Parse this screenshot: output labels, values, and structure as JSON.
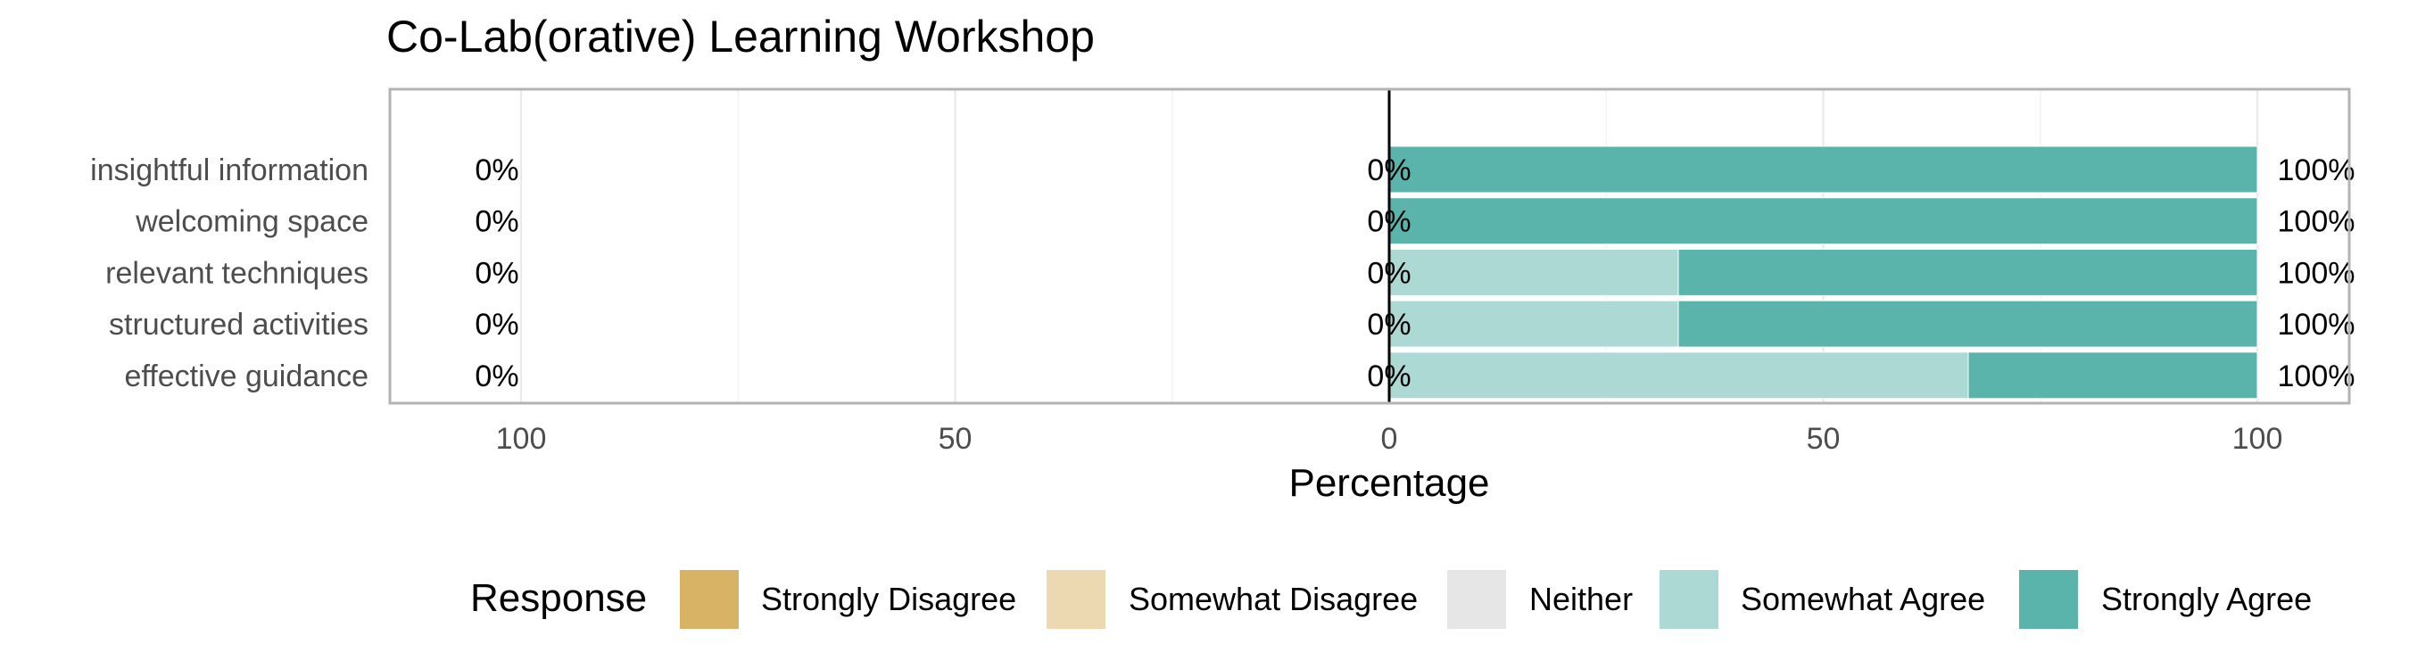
{
  "chart_data": {
    "type": "bar",
    "orientation": "horizontal",
    "stacked": "diverging",
    "title": "Co-Lab(orative) Learning Workshop",
    "xlabel": "Percentage",
    "ylabel": "",
    "xlim": [
      -115,
      110
    ],
    "xticks": [
      -100,
      -50,
      0,
      50,
      100
    ],
    "xtick_labels": [
      "100",
      "50",
      "0",
      "50",
      "100"
    ],
    "grid": true,
    "legend": {
      "title": "Response",
      "position": "bottom"
    },
    "categories": [
      "insightful information",
      "welcoming space",
      "relevant techniques",
      "structured activities",
      "effective guidance"
    ],
    "series": [
      {
        "name": "Strongly Disagree",
        "color": "#D8B365",
        "values": [
          0,
          0,
          0,
          0,
          0
        ]
      },
      {
        "name": "Somewhat Disagree",
        "color": "#ECD9B2",
        "values": [
          0,
          0,
          0,
          0,
          0
        ]
      },
      {
        "name": "Neither",
        "color": "#E6E6E6",
        "values": [
          0,
          0,
          0,
          0,
          0
        ]
      },
      {
        "name": "Somewhat Agree",
        "color": "#ADD9D5",
        "values": [
          0,
          0,
          33.3,
          33.3,
          66.7
        ]
      },
      {
        "name": "Strongly Agree",
        "color": "#5AB4AC",
        "values": [
          100,
          100,
          66.7,
          66.7,
          33.3
        ]
      }
    ],
    "annotations": {
      "left": [
        "0%",
        "0%",
        "0%",
        "0%",
        "0%"
      ],
      "center": [
        "0%",
        "0%",
        "0%",
        "0%",
        "0%"
      ],
      "right": [
        "100%",
        "100%",
        "100%",
        "100%",
        "100%"
      ]
    }
  }
}
